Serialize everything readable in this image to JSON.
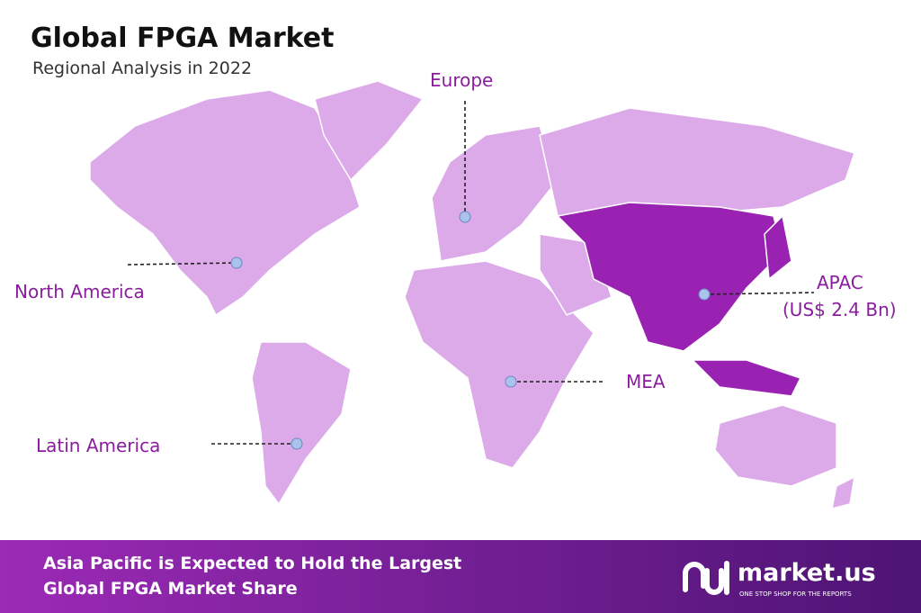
{
  "header": {
    "title": "Global FPGA Market",
    "subtitle": "Regional Analysis in 2022"
  },
  "regions": [
    {
      "label": "Europe"
    },
    {
      "label": "North America"
    },
    {
      "label": "Latin America"
    },
    {
      "label": "MEA"
    },
    {
      "label": "APAC",
      "value_label": "(US$ 2.4 Bn)"
    }
  ],
  "footer": {
    "lines": [
      "Asia Pacific is Expected to Hold the Largest",
      "Global FPGA Market Share"
    ],
    "brand": "market.us",
    "tagline": "ONE STOP SHOP FOR THE REPORTS"
  }
}
